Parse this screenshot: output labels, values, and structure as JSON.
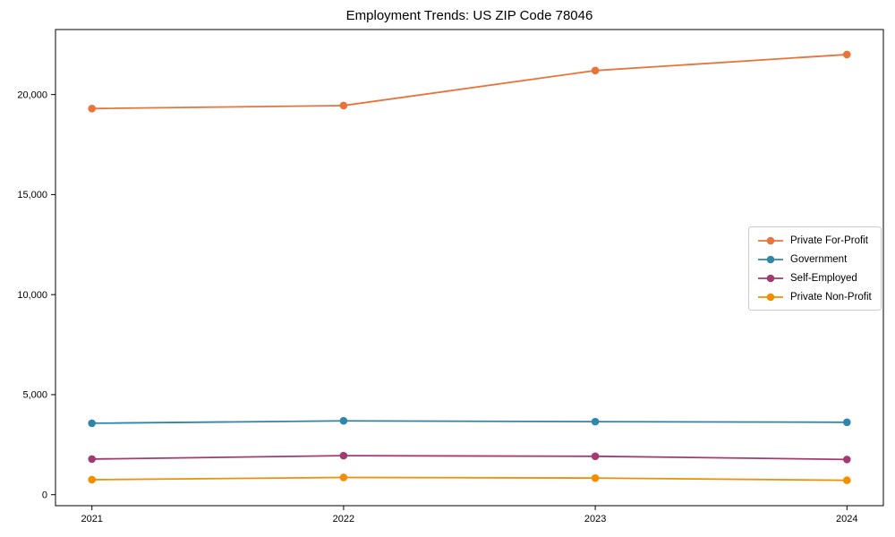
{
  "chart_data": {
    "type": "line",
    "title": "Employment Trends: US ZIP Code 78046",
    "x": [
      "2021",
      "2022",
      "2023",
      "2024"
    ],
    "series": [
      {
        "name": "Private For-Profit",
        "color": "#E8743B",
        "values": [
          19300,
          19450,
          21200,
          22000
        ]
      },
      {
        "name": "Government",
        "color": "#2E86AB",
        "values": [
          3570,
          3690,
          3650,
          3620
        ]
      },
      {
        "name": "Self-Employed",
        "color": "#A23B72",
        "values": [
          1780,
          1950,
          1920,
          1760
        ]
      },
      {
        "name": "Private Non-Profit",
        "color": "#F18F01",
        "values": [
          750,
          860,
          830,
          720
        ]
      }
    ],
    "yticks": [
      {
        "value": 0,
        "label": "0"
      },
      {
        "value": 5000,
        "label": "5,000"
      },
      {
        "value": 10000,
        "label": "10,000"
      },
      {
        "value": 15000,
        "label": "15,000"
      },
      {
        "value": 20000,
        "label": "20,000"
      }
    ],
    "ylim": [
      -550,
      23250
    ],
    "grid": false,
    "legend_position": "center right",
    "axis_color": "#000000",
    "tick_label_color": "#000000",
    "background": "#ffffff"
  }
}
